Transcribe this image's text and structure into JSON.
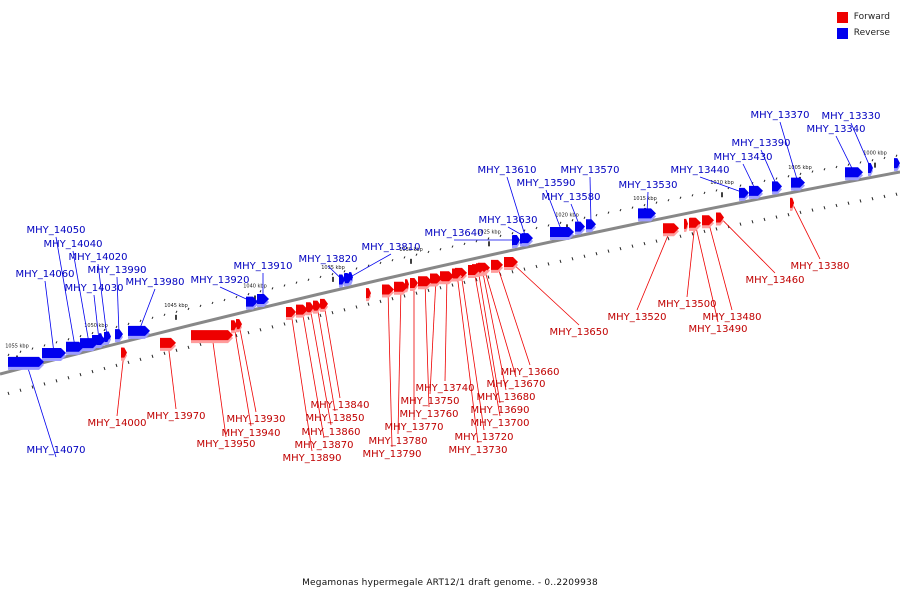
{
  "legend": [
    {
      "label": "Forward",
      "color": "#ee0000"
    },
    {
      "label": "Reverse",
      "color": "#0000ee"
    }
  ],
  "caption": "Megamonas hypermegale ART12/1 draft genome. - 0..2209938",
  "colors": {
    "forward": "#ee0000",
    "reverse": "#0000ee",
    "backbone": "#888888"
  },
  "ticks": [
    {
      "label": "1000 kbp"
    },
    {
      "label": "1005 kbp"
    },
    {
      "label": "1010 kbp"
    },
    {
      "label": "1015 kbp"
    },
    {
      "label": "1020 kbp"
    },
    {
      "label": "1025 kbp"
    },
    {
      "label": "1030 kbp"
    },
    {
      "label": "1035 kbp"
    },
    {
      "label": "1040 kbp"
    },
    {
      "label": "1045 kbp"
    },
    {
      "label": "1050 kbp"
    },
    {
      "label": "1055 kbp"
    }
  ],
  "reverse_genes": [
    "MHY_13330",
    "MHY_13340",
    "MHY_13370",
    "MHY_13390",
    "MHY_13430",
    "MHY_13440",
    "MHY_13530",
    "MHY_13570",
    "MHY_13580",
    "MHY_13590",
    "MHY_13610",
    "MHY_13630",
    "MHY_13640",
    "MHY_13810",
    "MHY_13820",
    "MHY_13910",
    "MHY_13920",
    "MHY_13980",
    "MHY_13990",
    "MHY_14020",
    "MHY_14030",
    "MHY_14040",
    "MHY_14050",
    "MHY_14060",
    "MHY_14070"
  ],
  "forward_genes": [
    "MHY_13380",
    "MHY_13460",
    "MHY_13480",
    "MHY_13490",
    "MHY_13500",
    "MHY_13520",
    "MHY_13650",
    "MHY_13660",
    "MHY_13670",
    "MHY_13680",
    "MHY_13690",
    "MHY_13700",
    "MHY_13720",
    "MHY_13730",
    "MHY_13740",
    "MHY_13750",
    "MHY_13760",
    "MHY_13770",
    "MHY_13780",
    "MHY_13790",
    "MHY_13840",
    "MHY_13850",
    "MHY_13860",
    "MHY_13870",
    "MHY_13890",
    "MHY_13930",
    "MHY_13940",
    "MHY_13950",
    "MHY_13970",
    "MHY_14000"
  ]
}
